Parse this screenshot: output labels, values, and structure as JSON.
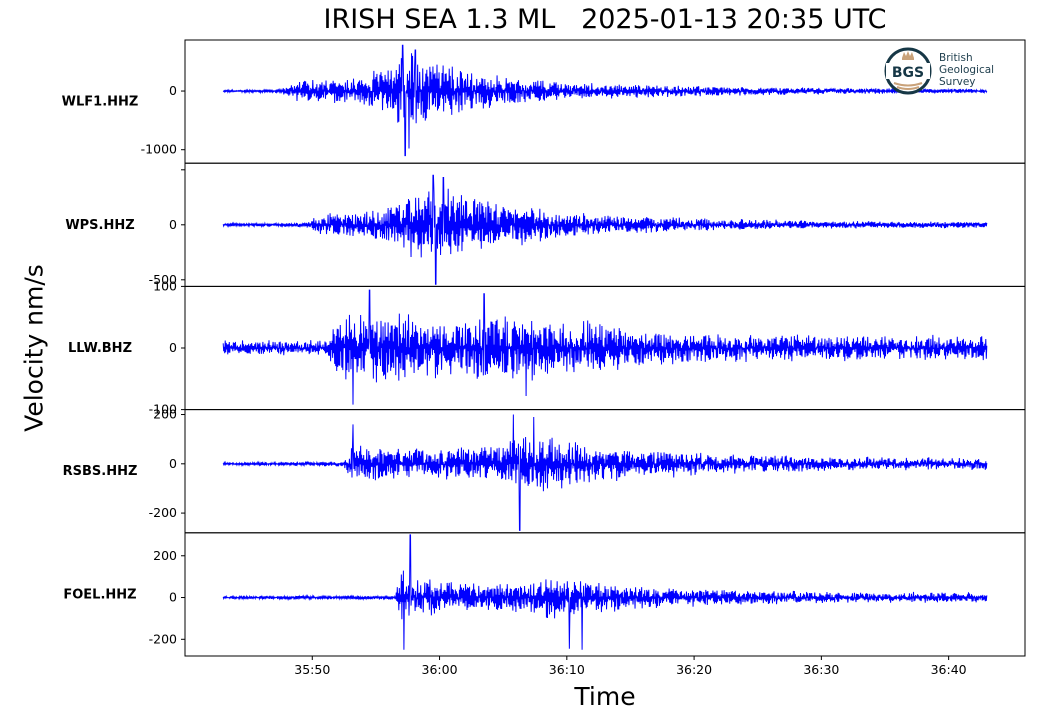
{
  "title": "IRISH SEA 1.3 ML   2025-01-13 20:35 UTC",
  "logo": {
    "text_lines": [
      "British",
      "Geological",
      "Survey"
    ],
    "mark": "BGS",
    "icon": "crown-icon"
  },
  "chart_data": {
    "type": "line",
    "title": "IRISH SEA 1.3 ML   2025-01-13 20:35 UTC",
    "xlabel": "Time",
    "ylabel": "Velocity nm/s",
    "line_color": "#0000ff",
    "x_range": [
      "20:35:43",
      "20:36:43"
    ],
    "x_ticks": [
      "35:50",
      "36:00",
      "36:10",
      "36:20",
      "36:30",
      "36:40"
    ],
    "x_tick_seconds": [
      2150,
      2160,
      2170,
      2180,
      2190,
      2200
    ],
    "x_data_range_seconds": [
      2143,
      2203
    ],
    "series": [
      {
        "name": "WLF1.HHZ",
        "ylim": [
          -1230,
          870
        ],
        "y_ticks": [
          {
            "value": 0,
            "label": "0"
          },
          {
            "value": -1000,
            "label": "-1000"
          }
        ],
        "noise": 25,
        "envelope": [
          [
            2143,
            25
          ],
          [
            2147.5,
            40
          ],
          [
            2148.5,
            200
          ],
          [
            2151,
            260
          ],
          [
            2154,
            320
          ],
          [
            2156,
            500
          ],
          [
            2157,
            820
          ],
          [
            2158.5,
            780
          ],
          [
            2161,
            500
          ],
          [
            2165,
            300
          ],
          [
            2170,
            180
          ],
          [
            2180,
            110
          ],
          [
            2192,
            60
          ],
          [
            2203,
            50
          ]
        ],
        "peaks": [
          {
            "t": 2157.1,
            "v": 780
          },
          {
            "t": 2157.3,
            "v": -1100
          },
          {
            "t": 2157.6,
            "v": -980
          },
          {
            "t": 2158.1,
            "v": 700
          }
        ]
      },
      {
        "name": "WPS.HHZ",
        "ylim": [
          -560,
          560
        ],
        "y_ticks": [
          {
            "value": 500,
            "label": ""
          },
          {
            "value": 0,
            "label": "0"
          },
          {
            "value": -500,
            "label": "-500"
          }
        ],
        "noise": 15,
        "envelope": [
          [
            2143,
            15
          ],
          [
            2149.5,
            25
          ],
          [
            2150.5,
            120
          ],
          [
            2154,
            150
          ],
          [
            2157,
            260
          ],
          [
            2158,
            380
          ],
          [
            2160,
            420
          ],
          [
            2163,
            300
          ],
          [
            2167,
            200
          ],
          [
            2172,
            120
          ],
          [
            2180,
            70
          ],
          [
            2192,
            40
          ],
          [
            2203,
            35
          ]
        ],
        "peaks": [
          {
            "t": 2159.7,
            "v": -540
          },
          {
            "t": 2159.5,
            "v": 450
          },
          {
            "t": 2160.3,
            "v": 430
          }
        ]
      },
      {
        "name": "LLW.BHZ",
        "ylim": [
          -100,
          100
        ],
        "y_ticks": [
          {
            "value": 100,
            "label": "100"
          },
          {
            "value": 0,
            "label": "0"
          },
          {
            "value": -100,
            "label": "-100"
          }
        ],
        "noise": 14,
        "envelope": [
          [
            2143,
            14
          ],
          [
            2151,
            16
          ],
          [
            2152.5,
            70
          ],
          [
            2155,
            75
          ],
          [
            2158,
            65
          ],
          [
            2162,
            60
          ],
          [
            2165,
            70
          ],
          [
            2170,
            55
          ],
          [
            2175,
            40
          ],
          [
            2180,
            28
          ],
          [
            2192,
            24
          ],
          [
            2203,
            24
          ]
        ],
        "peaks": [
          {
            "t": 2153.2,
            "v": -92
          },
          {
            "t": 2154.5,
            "v": 94
          },
          {
            "t": 2163.5,
            "v": 88
          },
          {
            "t": 2166.8,
            "v": -78
          }
        ]
      },
      {
        "name": "RSBS.HHZ",
        "ylim": [
          -280,
          220
        ],
        "y_ticks": [
          {
            "value": 200,
            "label": "200"
          },
          {
            "value": 0,
            "label": "0"
          },
          {
            "value": -200,
            "label": "-200"
          }
        ],
        "noise": 8,
        "envelope": [
          [
            2143,
            8
          ],
          [
            2152.5,
            12
          ],
          [
            2153,
            90
          ],
          [
            2156,
            80
          ],
          [
            2160,
            70
          ],
          [
            2164,
            110
          ],
          [
            2166,
            150
          ],
          [
            2168,
            140
          ],
          [
            2172,
            95
          ],
          [
            2176,
            70
          ],
          [
            2182,
            50
          ],
          [
            2192,
            35
          ],
          [
            2203,
            30
          ]
        ],
        "peaks": [
          {
            "t": 2153.2,
            "v": 160
          },
          {
            "t": 2165.8,
            "v": 200
          },
          {
            "t": 2166.3,
            "v": -270
          },
          {
            "t": 2167.4,
            "v": 190
          }
        ]
      },
      {
        "name": "FOEL.HHZ",
        "ylim": [
          -280,
          310
        ],
        "y_ticks": [
          {
            "value": 200,
            "label": "200"
          },
          {
            "value": 0,
            "label": "0"
          },
          {
            "value": -200,
            "label": "-200"
          }
        ],
        "noise": 9,
        "envelope": [
          [
            2143,
            9
          ],
          [
            2156.5,
            12
          ],
          [
            2157,
            170
          ],
          [
            2158.5,
            110
          ],
          [
            2162,
            80
          ],
          [
            2166,
            90
          ],
          [
            2169,
            130
          ],
          [
            2172,
            95
          ],
          [
            2176,
            60
          ],
          [
            2182,
            45
          ],
          [
            2192,
            32
          ],
          [
            2203,
            30
          ]
        ],
        "peaks": [
          {
            "t": 2157.2,
            "v": -250
          },
          {
            "t": 2157.7,
            "v": 300
          },
          {
            "t": 2170.2,
            "v": -245
          },
          {
            "t": 2171.2,
            "v": -250
          }
        ]
      }
    ]
  }
}
